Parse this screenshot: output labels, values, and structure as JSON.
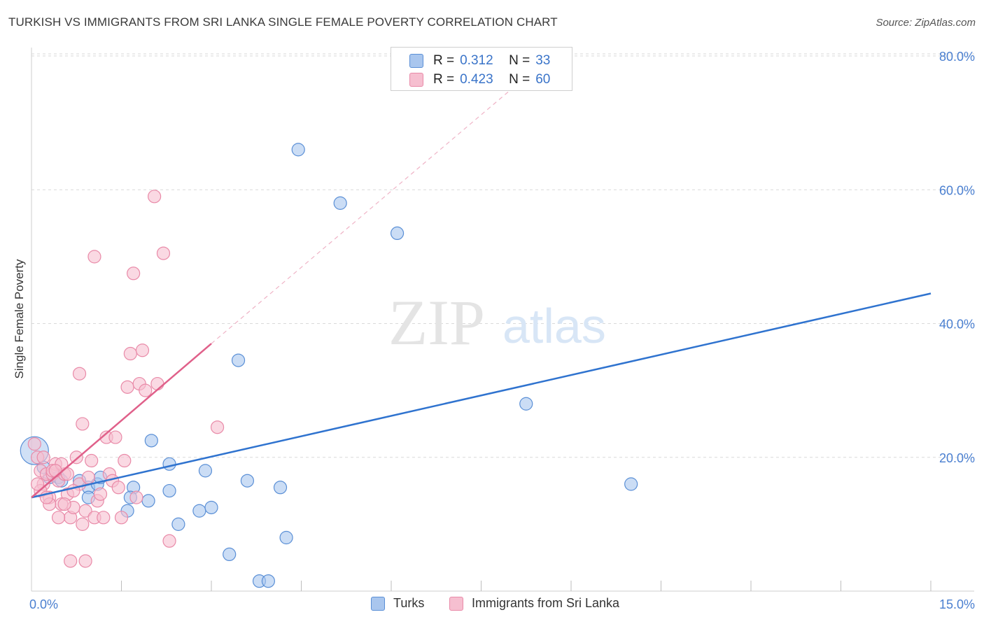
{
  "title": "TURKISH VS IMMIGRANTS FROM SRI LANKA SINGLE FEMALE POVERTY CORRELATION CHART",
  "source": "Source: ZipAtlas.com",
  "watermark": {
    "zip": "ZIP",
    "atlas": "atlas"
  },
  "colors": {
    "turks_fill": "#a9c6ee",
    "turks_stroke": "#5a8fd6",
    "turks_line": "#2f73cf",
    "lanka_fill": "#f6bfd0",
    "lanka_stroke": "#e98aa8",
    "lanka_line": "#e0608a",
    "grid": "#d9d9d9",
    "axis_text": "#4a7fd0"
  },
  "legend": {
    "rows": [
      {
        "r_label": "R =",
        "r_value": "0.312",
        "n_label": "N =",
        "n_value": "33"
      },
      {
        "r_label": "R =",
        "r_value": "0.423",
        "n_label": "N =",
        "n_value": "60"
      }
    ]
  },
  "bottom_legend": {
    "turks": "Turks",
    "lanka": "Immigrants from Sri Lanka"
  },
  "chart_data": {
    "type": "scatter",
    "title": "TURKISH VS IMMIGRANTS FROM SRI LANKA SINGLE FEMALE POVERTY CORRELATION CHART",
    "xlabel": "",
    "ylabel": "Single Female Poverty",
    "xlim": [
      0,
      15
    ],
    "ylim": [
      0,
      80
    ],
    "x_tick_labels": [
      "0.0%",
      "15.0%"
    ],
    "y_ticks": [
      20,
      40,
      60,
      80
    ],
    "y_tick_labels": [
      "20.0%",
      "40.0%",
      "60.0%",
      "80.0%"
    ],
    "grid": true,
    "series": [
      {
        "name": "Turks",
        "points": [
          [
            0.05,
            21.0
          ],
          [
            0.2,
            18.5
          ],
          [
            0.3,
            17.0
          ],
          [
            0.45,
            17.0
          ],
          [
            0.8,
            16.5
          ],
          [
            0.95,
            15.5
          ],
          [
            1.1,
            16.0
          ],
          [
            1.15,
            17.0
          ],
          [
            1.7,
            15.5
          ],
          [
            2.0,
            22.5
          ],
          [
            1.65,
            14.0
          ],
          [
            2.3,
            19.0
          ],
          [
            2.9,
            18.0
          ],
          [
            2.3,
            15.0
          ],
          [
            1.95,
            13.5
          ],
          [
            2.8,
            12.0
          ],
          [
            3.0,
            12.5
          ],
          [
            2.45,
            10.0
          ],
          [
            3.45,
            34.5
          ],
          [
            3.6,
            16.5
          ],
          [
            4.15,
            15.5
          ],
          [
            4.45,
            66.0
          ],
          [
            5.15,
            58.0
          ],
          [
            6.1,
            53.5
          ],
          [
            8.25,
            28.0
          ],
          [
            10.0,
            16.0
          ],
          [
            4.25,
            8.0
          ],
          [
            3.3,
            5.5
          ],
          [
            3.8,
            1.5
          ],
          [
            3.95,
            1.5
          ],
          [
            1.6,
            12.0
          ],
          [
            0.95,
            14.0
          ],
          [
            0.5,
            16.5
          ]
        ],
        "trend": {
          "x": [
            0,
            15
          ],
          "y": [
            14.0,
            44.5
          ]
        }
      },
      {
        "name": "Immigrants from Sri Lanka",
        "points": [
          [
            0.05,
            22.0
          ],
          [
            0.1,
            20.0
          ],
          [
            0.15,
            18.0
          ],
          [
            0.2,
            16.0
          ],
          [
            0.25,
            17.5
          ],
          [
            0.3,
            14.0
          ],
          [
            0.35,
            17.5
          ],
          [
            0.4,
            19.0
          ],
          [
            0.45,
            16.5
          ],
          [
            0.5,
            13.0
          ],
          [
            0.55,
            17.5
          ],
          [
            0.6,
            14.5
          ],
          [
            0.65,
            11.0
          ],
          [
            0.7,
            12.5
          ],
          [
            0.75,
            20.0
          ],
          [
            0.8,
            16.0
          ],
          [
            0.85,
            10.0
          ],
          [
            0.9,
            12.0
          ],
          [
            0.95,
            17.0
          ],
          [
            1.0,
            19.5
          ],
          [
            1.05,
            11.0
          ],
          [
            1.1,
            13.5
          ],
          [
            1.15,
            14.5
          ],
          [
            1.2,
            11.0
          ],
          [
            1.25,
            23.0
          ],
          [
            1.3,
            17.5
          ],
          [
            1.35,
            16.5
          ],
          [
            1.4,
            23.0
          ],
          [
            1.45,
            15.5
          ],
          [
            1.5,
            11.0
          ],
          [
            1.55,
            19.5
          ],
          [
            1.6,
            30.5
          ],
          [
            1.65,
            35.5
          ],
          [
            1.7,
            47.5
          ],
          [
            1.75,
            14.0
          ],
          [
            1.8,
            31.0
          ],
          [
            1.85,
            36.0
          ],
          [
            1.9,
            30.0
          ],
          [
            2.05,
            59.0
          ],
          [
            2.1,
            31.0
          ],
          [
            2.2,
            50.5
          ],
          [
            2.3,
            7.5
          ],
          [
            1.05,
            50.0
          ],
          [
            0.85,
            25.0
          ],
          [
            0.8,
            32.5
          ],
          [
            3.1,
            24.5
          ],
          [
            0.65,
            4.5
          ],
          [
            0.9,
            4.5
          ],
          [
            0.2,
            20.0
          ],
          [
            0.35,
            18.0
          ],
          [
            0.5,
            19.0
          ],
          [
            0.15,
            15.0
          ],
          [
            0.6,
            17.5
          ],
          [
            0.7,
            15.0
          ],
          [
            0.3,
            13.0
          ],
          [
            0.4,
            18.0
          ],
          [
            0.1,
            16.0
          ],
          [
            0.55,
            13.0
          ],
          [
            0.25,
            14.0
          ],
          [
            0.45,
            11.0
          ]
        ],
        "trend": {
          "x": [
            0,
            3.0
          ],
          "y": [
            14.0,
            37.0
          ]
        },
        "trend_extension": {
          "x": [
            3.0,
            8.0
          ],
          "y": [
            37.0,
            75.0
          ]
        }
      }
    ]
  }
}
